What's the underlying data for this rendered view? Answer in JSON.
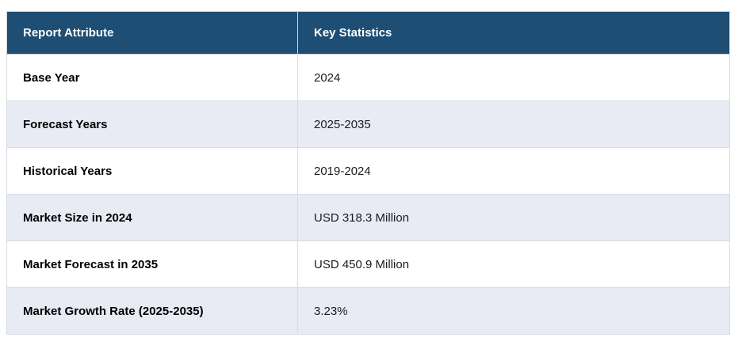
{
  "chart_data": {
    "type": "table",
    "title": "Report Attribute / Key Statistics summary table",
    "columns": [
      "Report Attribute",
      "Key Statistics"
    ],
    "rows": [
      [
        "Base Year",
        "2024"
      ],
      [
        "Forecast Years",
        "2025-2035"
      ],
      [
        "Historical Years",
        "2019-2024"
      ],
      [
        "Market Size in 2024",
        "USD 318.3 Million"
      ],
      [
        "Market Forecast in 2035",
        "USD 450.9 Million"
      ],
      [
        "Market Growth Rate (2025-2035)",
        "3.23%"
      ]
    ]
  },
  "colors": {
    "header_bg": "#1e4e74",
    "header_text": "#ffffff",
    "row_bg": "#ffffff",
    "row_alt_bg": "#e8eaf4",
    "border": "#d9dce3",
    "body_text": "#1b1b1b"
  }
}
